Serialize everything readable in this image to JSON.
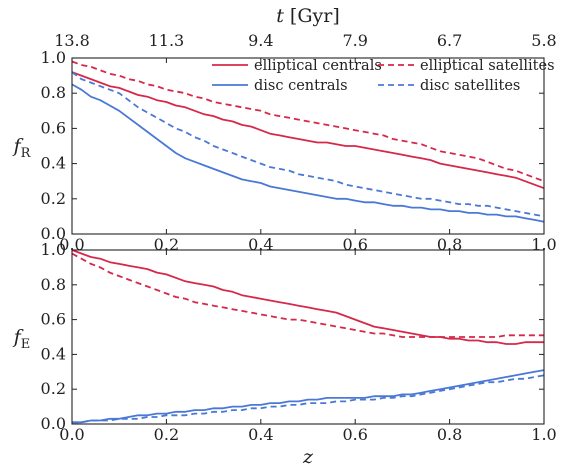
{
  "chart_data": [
    {
      "type": "line",
      "panel": "top",
      "xlabel": "z",
      "ylabel": "f_R",
      "xlim": [
        0.0,
        1.0
      ],
      "ylim": [
        0.0,
        1.0
      ],
      "xticks": [
        "0.0",
        "0.2",
        "0.4",
        "0.6",
        "0.8",
        "1.0"
      ],
      "yticks": [
        "0.0",
        "0.2",
        "0.4",
        "0.6",
        "0.8",
        "1.0"
      ],
      "top_axis": {
        "label": "t [Gyr]",
        "ticks": [
          {
            "z": 0.0,
            "label": "13.8"
          },
          {
            "z": 0.2,
            "label": "11.3"
          },
          {
            "z": 0.4,
            "label": "9.4"
          },
          {
            "z": 0.6,
            "label": "7.9"
          },
          {
            "z": 0.8,
            "label": "6.7"
          },
          {
            "z": 1.0,
            "label": "5.8"
          }
        ]
      },
      "grid": false,
      "legend_position": "top-right",
      "series": [
        {
          "name": "elliptical centrals",
          "color": "#d6284a",
          "dash": "solid",
          "x": [
            0,
            0.02,
            0.04,
            0.06,
            0.08,
            0.1,
            0.12,
            0.14,
            0.16,
            0.18,
            0.2,
            0.22,
            0.24,
            0.26,
            0.28,
            0.3,
            0.32,
            0.34,
            0.36,
            0.38,
            0.4,
            0.42,
            0.44,
            0.46,
            0.48,
            0.5,
            0.52,
            0.54,
            0.56,
            0.58,
            0.6,
            0.62,
            0.64,
            0.66,
            0.68,
            0.7,
            0.72,
            0.74,
            0.76,
            0.78,
            0.8,
            0.82,
            0.84,
            0.86,
            0.88,
            0.9,
            0.92,
            0.94,
            0.96,
            0.98,
            1.0
          ],
          "y": [
            0.92,
            0.9,
            0.88,
            0.86,
            0.84,
            0.83,
            0.81,
            0.79,
            0.78,
            0.76,
            0.75,
            0.73,
            0.72,
            0.7,
            0.68,
            0.67,
            0.65,
            0.64,
            0.62,
            0.61,
            0.59,
            0.57,
            0.56,
            0.55,
            0.54,
            0.53,
            0.52,
            0.52,
            0.51,
            0.5,
            0.5,
            0.49,
            0.48,
            0.47,
            0.46,
            0.45,
            0.44,
            0.43,
            0.42,
            0.4,
            0.39,
            0.38,
            0.37,
            0.36,
            0.35,
            0.34,
            0.33,
            0.32,
            0.3,
            0.28,
            0.26
          ]
        },
        {
          "name": "elliptical satellites",
          "color": "#d6284a",
          "dash": "dashed",
          "x": [
            0,
            0.02,
            0.04,
            0.06,
            0.08,
            0.1,
            0.12,
            0.14,
            0.16,
            0.18,
            0.2,
            0.22,
            0.24,
            0.26,
            0.28,
            0.3,
            0.32,
            0.34,
            0.36,
            0.38,
            0.4,
            0.42,
            0.44,
            0.46,
            0.48,
            0.5,
            0.52,
            0.54,
            0.56,
            0.58,
            0.6,
            0.62,
            0.64,
            0.66,
            0.68,
            0.7,
            0.72,
            0.74,
            0.76,
            0.78,
            0.8,
            0.82,
            0.84,
            0.86,
            0.88,
            0.9,
            0.92,
            0.94,
            0.96,
            0.98,
            1.0
          ],
          "y": [
            0.98,
            0.96,
            0.95,
            0.93,
            0.91,
            0.9,
            0.88,
            0.87,
            0.85,
            0.84,
            0.82,
            0.81,
            0.8,
            0.78,
            0.77,
            0.75,
            0.74,
            0.73,
            0.72,
            0.71,
            0.7,
            0.68,
            0.67,
            0.66,
            0.65,
            0.64,
            0.63,
            0.62,
            0.61,
            0.6,
            0.59,
            0.58,
            0.57,
            0.56,
            0.54,
            0.53,
            0.52,
            0.51,
            0.49,
            0.47,
            0.46,
            0.45,
            0.44,
            0.43,
            0.41,
            0.39,
            0.37,
            0.36,
            0.34,
            0.32,
            0.3
          ]
        },
        {
          "name": "disc centrals",
          "color": "#4a78d6",
          "dash": "solid",
          "x": [
            0,
            0.02,
            0.04,
            0.06,
            0.08,
            0.1,
            0.12,
            0.14,
            0.16,
            0.18,
            0.2,
            0.22,
            0.24,
            0.26,
            0.28,
            0.3,
            0.32,
            0.34,
            0.36,
            0.38,
            0.4,
            0.42,
            0.44,
            0.46,
            0.48,
            0.5,
            0.52,
            0.54,
            0.56,
            0.58,
            0.6,
            0.62,
            0.64,
            0.66,
            0.68,
            0.7,
            0.72,
            0.74,
            0.76,
            0.78,
            0.8,
            0.82,
            0.84,
            0.86,
            0.88,
            0.9,
            0.92,
            0.94,
            0.96,
            0.98,
            1.0
          ],
          "y": [
            0.85,
            0.82,
            0.78,
            0.76,
            0.73,
            0.7,
            0.66,
            0.62,
            0.58,
            0.54,
            0.5,
            0.46,
            0.43,
            0.41,
            0.39,
            0.37,
            0.35,
            0.33,
            0.31,
            0.3,
            0.29,
            0.27,
            0.26,
            0.25,
            0.24,
            0.23,
            0.22,
            0.21,
            0.2,
            0.2,
            0.19,
            0.18,
            0.18,
            0.17,
            0.16,
            0.16,
            0.15,
            0.15,
            0.14,
            0.14,
            0.13,
            0.13,
            0.12,
            0.12,
            0.11,
            0.11,
            0.1,
            0.1,
            0.09,
            0.08,
            0.07
          ]
        },
        {
          "name": "disc satellites",
          "color": "#4a78d6",
          "dash": "dashed",
          "x": [
            0,
            0.02,
            0.04,
            0.06,
            0.08,
            0.1,
            0.12,
            0.14,
            0.16,
            0.18,
            0.2,
            0.22,
            0.24,
            0.26,
            0.28,
            0.3,
            0.32,
            0.34,
            0.36,
            0.38,
            0.4,
            0.42,
            0.44,
            0.46,
            0.48,
            0.5,
            0.52,
            0.54,
            0.56,
            0.58,
            0.6,
            0.62,
            0.64,
            0.66,
            0.68,
            0.7,
            0.72,
            0.74,
            0.76,
            0.78,
            0.8,
            0.82,
            0.84,
            0.86,
            0.88,
            0.9,
            0.92,
            0.94,
            0.96,
            0.98,
            1.0
          ],
          "y": [
            0.92,
            0.88,
            0.86,
            0.84,
            0.82,
            0.8,
            0.76,
            0.72,
            0.69,
            0.66,
            0.63,
            0.6,
            0.58,
            0.55,
            0.53,
            0.5,
            0.48,
            0.46,
            0.44,
            0.42,
            0.4,
            0.38,
            0.37,
            0.36,
            0.34,
            0.33,
            0.32,
            0.31,
            0.3,
            0.28,
            0.27,
            0.26,
            0.25,
            0.24,
            0.23,
            0.22,
            0.21,
            0.2,
            0.2,
            0.19,
            0.18,
            0.17,
            0.17,
            0.16,
            0.16,
            0.15,
            0.14,
            0.13,
            0.12,
            0.11,
            0.1
          ]
        }
      ]
    },
    {
      "type": "line",
      "panel": "bottom",
      "xlabel": "z",
      "ylabel": "f_E",
      "xlim": [
        0.0,
        1.0
      ],
      "ylim": [
        0.0,
        1.0
      ],
      "xticks": [
        "0.0",
        "0.2",
        "0.4",
        "0.6",
        "0.8",
        "1.0"
      ],
      "yticks": [
        "0.0",
        "0.2",
        "0.4",
        "0.6",
        "0.8",
        "1.0"
      ],
      "grid": false,
      "series": [
        {
          "name": "elliptical centrals",
          "color": "#d6284a",
          "dash": "solid",
          "x": [
            0,
            0.02,
            0.04,
            0.06,
            0.08,
            0.1,
            0.12,
            0.14,
            0.16,
            0.18,
            0.2,
            0.22,
            0.24,
            0.26,
            0.28,
            0.3,
            0.32,
            0.34,
            0.36,
            0.38,
            0.4,
            0.42,
            0.44,
            0.46,
            0.48,
            0.5,
            0.52,
            0.54,
            0.56,
            0.58,
            0.6,
            0.62,
            0.64,
            0.66,
            0.68,
            0.7,
            0.72,
            0.74,
            0.76,
            0.78,
            0.8,
            0.82,
            0.84,
            0.86,
            0.88,
            0.9,
            0.92,
            0.94,
            0.96,
            0.98,
            1.0
          ],
          "y": [
            1.0,
            0.98,
            0.96,
            0.95,
            0.93,
            0.92,
            0.91,
            0.9,
            0.89,
            0.87,
            0.86,
            0.84,
            0.82,
            0.81,
            0.8,
            0.79,
            0.77,
            0.76,
            0.74,
            0.73,
            0.72,
            0.71,
            0.7,
            0.69,
            0.68,
            0.67,
            0.66,
            0.65,
            0.64,
            0.62,
            0.6,
            0.58,
            0.56,
            0.55,
            0.54,
            0.53,
            0.52,
            0.51,
            0.5,
            0.5,
            0.49,
            0.49,
            0.48,
            0.48,
            0.47,
            0.47,
            0.46,
            0.46,
            0.47,
            0.47,
            0.47
          ]
        },
        {
          "name": "elliptical satellites",
          "color": "#d6284a",
          "dash": "dashed",
          "x": [
            0,
            0.02,
            0.04,
            0.06,
            0.08,
            0.1,
            0.12,
            0.14,
            0.16,
            0.18,
            0.2,
            0.22,
            0.24,
            0.26,
            0.28,
            0.3,
            0.32,
            0.34,
            0.36,
            0.38,
            0.4,
            0.42,
            0.44,
            0.46,
            0.48,
            0.5,
            0.52,
            0.54,
            0.56,
            0.58,
            0.6,
            0.62,
            0.64,
            0.66,
            0.68,
            0.7,
            0.72,
            0.74,
            0.76,
            0.78,
            0.8,
            0.82,
            0.84,
            0.86,
            0.88,
            0.9,
            0.92,
            0.94,
            0.96,
            0.98,
            1.0
          ],
          "y": [
            0.98,
            0.95,
            0.92,
            0.9,
            0.87,
            0.85,
            0.83,
            0.81,
            0.79,
            0.77,
            0.75,
            0.73,
            0.72,
            0.7,
            0.69,
            0.68,
            0.67,
            0.66,
            0.65,
            0.64,
            0.63,
            0.62,
            0.61,
            0.6,
            0.6,
            0.59,
            0.58,
            0.57,
            0.56,
            0.55,
            0.54,
            0.53,
            0.52,
            0.52,
            0.51,
            0.5,
            0.5,
            0.5,
            0.5,
            0.5,
            0.5,
            0.5,
            0.5,
            0.5,
            0.5,
            0.5,
            0.51,
            0.51,
            0.51,
            0.51,
            0.51
          ]
        },
        {
          "name": "disc centrals",
          "color": "#4a78d6",
          "dash": "solid",
          "x": [
            0,
            0.02,
            0.04,
            0.06,
            0.08,
            0.1,
            0.12,
            0.14,
            0.16,
            0.18,
            0.2,
            0.22,
            0.24,
            0.26,
            0.28,
            0.3,
            0.32,
            0.34,
            0.36,
            0.38,
            0.4,
            0.42,
            0.44,
            0.46,
            0.48,
            0.5,
            0.52,
            0.54,
            0.56,
            0.58,
            0.6,
            0.62,
            0.64,
            0.66,
            0.68,
            0.7,
            0.72,
            0.74,
            0.76,
            0.78,
            0.8,
            0.82,
            0.84,
            0.86,
            0.88,
            0.9,
            0.92,
            0.94,
            0.96,
            0.98,
            1.0
          ],
          "y": [
            0.01,
            0.01,
            0.02,
            0.02,
            0.03,
            0.03,
            0.04,
            0.05,
            0.05,
            0.06,
            0.06,
            0.07,
            0.07,
            0.08,
            0.08,
            0.09,
            0.09,
            0.1,
            0.1,
            0.11,
            0.11,
            0.12,
            0.12,
            0.13,
            0.13,
            0.14,
            0.14,
            0.15,
            0.15,
            0.15,
            0.15,
            0.15,
            0.16,
            0.16,
            0.16,
            0.17,
            0.17,
            0.18,
            0.19,
            0.2,
            0.21,
            0.22,
            0.23,
            0.24,
            0.25,
            0.26,
            0.27,
            0.28,
            0.29,
            0.3,
            0.31
          ]
        },
        {
          "name": "disc satellites",
          "color": "#4a78d6",
          "dash": "dashed",
          "x": [
            0,
            0.02,
            0.04,
            0.06,
            0.08,
            0.1,
            0.12,
            0.14,
            0.16,
            0.18,
            0.2,
            0.22,
            0.24,
            0.26,
            0.28,
            0.3,
            0.32,
            0.34,
            0.36,
            0.38,
            0.4,
            0.42,
            0.44,
            0.46,
            0.48,
            0.5,
            0.52,
            0.54,
            0.56,
            0.58,
            0.6,
            0.62,
            0.64,
            0.66,
            0.68,
            0.7,
            0.72,
            0.74,
            0.76,
            0.78,
            0.8,
            0.82,
            0.84,
            0.86,
            0.88,
            0.9,
            0.92,
            0.94,
            0.96,
            0.98,
            1.0
          ],
          "y": [
            0.01,
            0.01,
            0.02,
            0.02,
            0.02,
            0.03,
            0.03,
            0.03,
            0.04,
            0.04,
            0.05,
            0.05,
            0.05,
            0.06,
            0.06,
            0.07,
            0.07,
            0.08,
            0.08,
            0.09,
            0.09,
            0.1,
            0.1,
            0.11,
            0.11,
            0.12,
            0.12,
            0.12,
            0.13,
            0.13,
            0.14,
            0.14,
            0.14,
            0.15,
            0.15,
            0.16,
            0.16,
            0.17,
            0.18,
            0.19,
            0.2,
            0.21,
            0.22,
            0.23,
            0.24,
            0.24,
            0.25,
            0.26,
            0.26,
            0.27,
            0.28
          ]
        }
      ]
    }
  ]
}
